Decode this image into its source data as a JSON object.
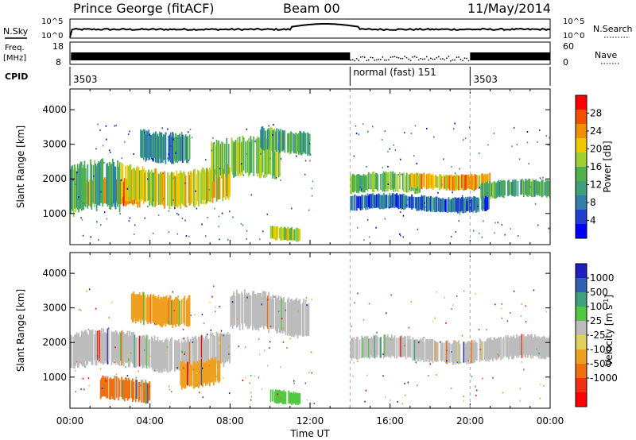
{
  "header": {
    "station": "Prince George (fitACF)",
    "beam": "Beam 00",
    "date": "11/May/2014"
  },
  "top_labels": {
    "nsky": "N.Sky",
    "nsearch": "N.Search",
    "freq": "Freq.",
    "freq_unit": "[MHz]",
    "nave": "Nave",
    "cpid": "CPID",
    "noise_hi": "10^5",
    "noise_lo": "10^0",
    "freq_hi": "18",
    "freq_lo": "8",
    "nave_hi": "60",
    "nave_lo": "0"
  },
  "cpid_segments": [
    {
      "start_hour": 0,
      "label": "3503"
    },
    {
      "start_hour": 14,
      "label": "normal (fast) 151"
    },
    {
      "start_hour": 20,
      "label": "3503"
    }
  ],
  "colors": {
    "power": [
      "#0000ff",
      "#1f3fd0",
      "#2f7fa8",
      "#3f9f7f",
      "#50b050",
      "#9fcf30",
      "#f0c800",
      "#f09000",
      "#f05000",
      "#ff0000"
    ],
    "velocity": [
      "#2020c0",
      "#3060b0",
      "#40a080",
      "#50c840",
      "#bcbcbc",
      "#e0d060",
      "#f0a020",
      "#f07010",
      "#f03010",
      "#ff0000"
    ]
  },
  "chart_data": [
    {
      "type": "heatmap",
      "name": "power",
      "ylabel": "Slant Range [km]",
      "x_range_hours": [
        0,
        24
      ],
      "y_range_km": [
        100,
        4600
      ],
      "yticks": [
        1000,
        2000,
        3000,
        4000
      ],
      "colorbar": {
        "label": "Power [dB]",
        "ticks": [
          4,
          8,
          12,
          16,
          20,
          24,
          28
        ],
        "range": [
          0,
          32
        ]
      },
      "bands": [
        {
          "t0": 0.0,
          "t1": 3.5,
          "r0": 1200,
          "r1": 1900,
          "value": 26
        },
        {
          "t0": 0.0,
          "t1": 2.5,
          "r0": 1000,
          "r1": 2300,
          "value": 12
        },
        {
          "t0": 2.5,
          "t1": 8.0,
          "r0": 1350,
          "r1": 2300,
          "value": 20
        },
        {
          "t0": 7.0,
          "t1": 10.5,
          "r0": 2000,
          "r1": 3000,
          "value": 16
        },
        {
          "t0": 3.5,
          "t1": 6.0,
          "r0": 2600,
          "r1": 3400,
          "value": 10
        },
        {
          "t0": 9.5,
          "t1": 12.0,
          "r0": 2800,
          "r1": 3400,
          "value": 12
        },
        {
          "t0": 10.0,
          "t1": 11.5,
          "r0": 250,
          "r1": 600,
          "value": 18
        },
        {
          "t0": 14.0,
          "t1": 17.5,
          "r0": 1600,
          "r1": 2100,
          "value": 14
        },
        {
          "t0": 17.0,
          "t1": 21.0,
          "r0": 1750,
          "r1": 2150,
          "value": 22
        },
        {
          "t0": 20.5,
          "t1": 24.0,
          "r0": 1450,
          "r1": 1900,
          "value": 12
        },
        {
          "t0": 14.0,
          "t1": 21.0,
          "r0": 1100,
          "r1": 1500,
          "value": 6
        }
      ]
    },
    {
      "type": "heatmap",
      "name": "velocity",
      "ylabel": "Slant Range [km]",
      "xlabel": "Time UT",
      "x_range_hours": [
        0,
        24
      ],
      "xtick_labels": [
        "00:00",
        "04:00",
        "08:00",
        "12:00",
        "16:00",
        "20:00",
        "00:00"
      ],
      "y_range_km": [
        100,
        4600
      ],
      "yticks": [
        1000,
        2000,
        3000,
        4000
      ],
      "colorbar": {
        "label": "Velocity [m s^-1]",
        "tick_labels": [
          "1000",
          "500",
          "100",
          "25",
          "-25",
          "-100",
          "-500",
          "-1000"
        ]
      },
      "bands": [
        {
          "t0": 0.0,
          "t1": 8.0,
          "r0": 1300,
          "r1": 2200,
          "value": "-25"
        },
        {
          "t0": 8.0,
          "t1": 12.0,
          "r0": 2300,
          "r1": 3300,
          "value": "-25"
        },
        {
          "t0": 14.0,
          "t1": 24.0,
          "r0": 1500,
          "r1": 2100,
          "value": "-25"
        },
        {
          "t0": 1.5,
          "t1": 4.0,
          "r0": 300,
          "r1": 900,
          "value": "-500"
        },
        {
          "t0": 5.5,
          "t1": 7.5,
          "r0": 800,
          "r1": 1500,
          "value": "-100"
        },
        {
          "t0": 10.0,
          "t1": 11.5,
          "r0": 250,
          "r1": 600,
          "value": "100"
        },
        {
          "t0": 3.0,
          "t1": 6.0,
          "r0": 2600,
          "r1": 3400,
          "value": "-100"
        }
      ]
    }
  ]
}
